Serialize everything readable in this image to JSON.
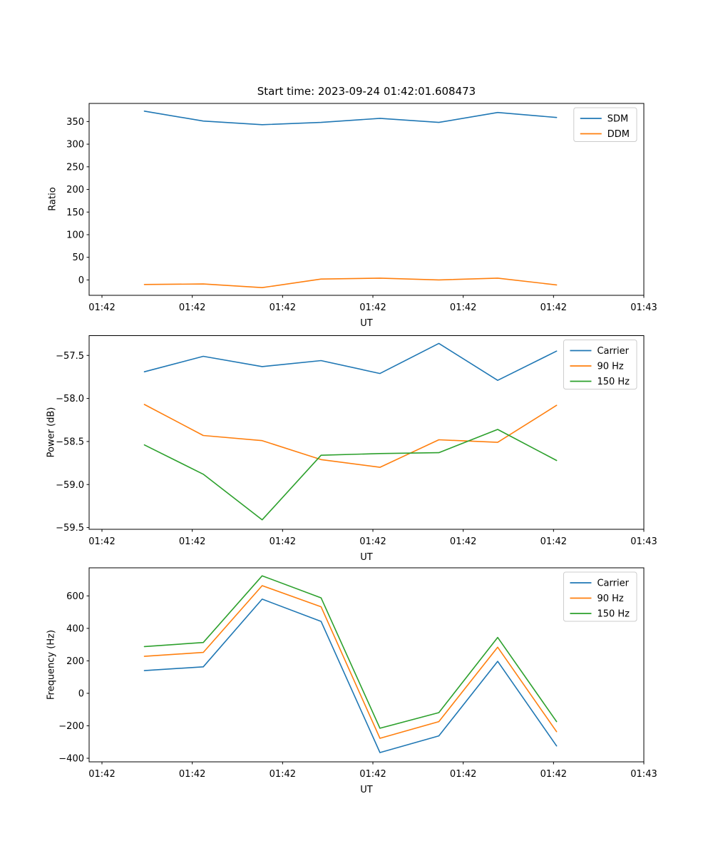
{
  "figure": {
    "title": "Start time: 2023-09-24 01:42:01.608473"
  },
  "chart_data": [
    {
      "id": "ratio",
      "type": "line",
      "title": "Start time: 2023-09-24 01:42:01.608473",
      "ylabel": "Ratio",
      "xlabel": "UT",
      "grid": false,
      "legend_position": "upper right",
      "x": [
        4.7,
        11.22,
        17.74,
        24.26,
        30.78,
        37.3,
        43.82,
        50.34
      ],
      "xlim": [
        -1.42,
        60
      ],
      "ylim": [
        -34,
        390
      ],
      "xticks": [
        0,
        10,
        20,
        30,
        40,
        50,
        60
      ],
      "xticklabels": [
        "01:42",
        "01:42",
        "01:42",
        "01:42",
        "01:42",
        "01:42",
        "01:43"
      ],
      "yticks": [
        0,
        50,
        100,
        150,
        200,
        250,
        300,
        350
      ],
      "yticklabels": [
        "0",
        "50",
        "100",
        "150",
        "200",
        "250",
        "300",
        "350"
      ],
      "series": [
        {
          "name": "SDM",
          "color": "#1f77b4",
          "values": [
            373,
            351,
            343,
            348,
            357,
            348,
            370,
            359
          ]
        },
        {
          "name": "DDM",
          "color": "#ff7f0e",
          "values": [
            -10,
            -9,
            -17,
            2,
            4,
            0,
            4,
            -11
          ]
        }
      ]
    },
    {
      "id": "power",
      "type": "line",
      "title": "",
      "ylabel": "Power (dB)",
      "xlabel": "UT",
      "grid": false,
      "legend_position": "upper right",
      "x": [
        4.7,
        11.22,
        17.74,
        24.26,
        30.78,
        37.3,
        43.82,
        50.34
      ],
      "xlim": [
        -1.42,
        60
      ],
      "ylim": [
        -59.52,
        -57.27
      ],
      "xticks": [
        0,
        10,
        20,
        30,
        40,
        50,
        60
      ],
      "xticklabels": [
        "01:42",
        "01:42",
        "01:42",
        "01:42",
        "01:42",
        "01:42",
        "01:43"
      ],
      "yticks": [
        -57.5,
        -58.0,
        -58.5,
        -59.0,
        -59.5
      ],
      "yticklabels": [
        "−57.5",
        "−58.0",
        "−58.5",
        "−59.0",
        "−59.5"
      ],
      "series": [
        {
          "name": "Carrier",
          "color": "#1f77b4",
          "values": [
            -57.69,
            -57.51,
            -57.63,
            -57.56,
            -57.71,
            -57.36,
            -57.79,
            -57.45
          ]
        },
        {
          "name": "90 Hz",
          "color": "#ff7f0e",
          "values": [
            -58.07,
            -58.43,
            -58.49,
            -58.71,
            -58.8,
            -58.48,
            -58.51,
            -58.08
          ]
        },
        {
          "name": "150 Hz",
          "color": "#2ca02c",
          "values": [
            -58.54,
            -58.88,
            -59.41,
            -58.66,
            -58.64,
            -58.63,
            -58.36,
            -58.72
          ]
        }
      ]
    },
    {
      "id": "frequency",
      "type": "line",
      "title": "",
      "ylabel": "Frequency (Hz)",
      "xlabel": "UT",
      "grid": false,
      "legend_position": "upper right",
      "x": [
        4.7,
        11.22,
        17.74,
        24.26,
        30.78,
        37.3,
        43.82,
        50.34
      ],
      "xlim": [
        -1.42,
        60
      ],
      "ylim": [
        -422,
        773
      ],
      "xticks": [
        0,
        10,
        20,
        30,
        40,
        50,
        60
      ],
      "xticklabels": [
        "01:42",
        "01:42",
        "01:42",
        "01:42",
        "01:42",
        "01:42",
        "01:43"
      ],
      "yticks": [
        -400,
        -200,
        0,
        200,
        400,
        600
      ],
      "yticklabels": [
        "−400",
        "−200",
        "0",
        "200",
        "400",
        "600"
      ],
      "series": [
        {
          "name": "Carrier",
          "color": "#1f77b4",
          "values": [
            140,
            163,
            580,
            443,
            -365,
            -262,
            197,
            -324
          ]
        },
        {
          "name": "90 Hz",
          "color": "#ff7f0e",
          "values": [
            228,
            252,
            663,
            533,
            -277,
            -174,
            284,
            -236
          ]
        },
        {
          "name": "150 Hz",
          "color": "#2ca02c",
          "values": [
            288,
            313,
            724,
            588,
            -215,
            -119,
            344,
            -174
          ]
        }
      ]
    }
  ],
  "style": {
    "axis_color": "#000000",
    "legend_border_color": "#cccccc",
    "legend_background": "#ffffff"
  }
}
